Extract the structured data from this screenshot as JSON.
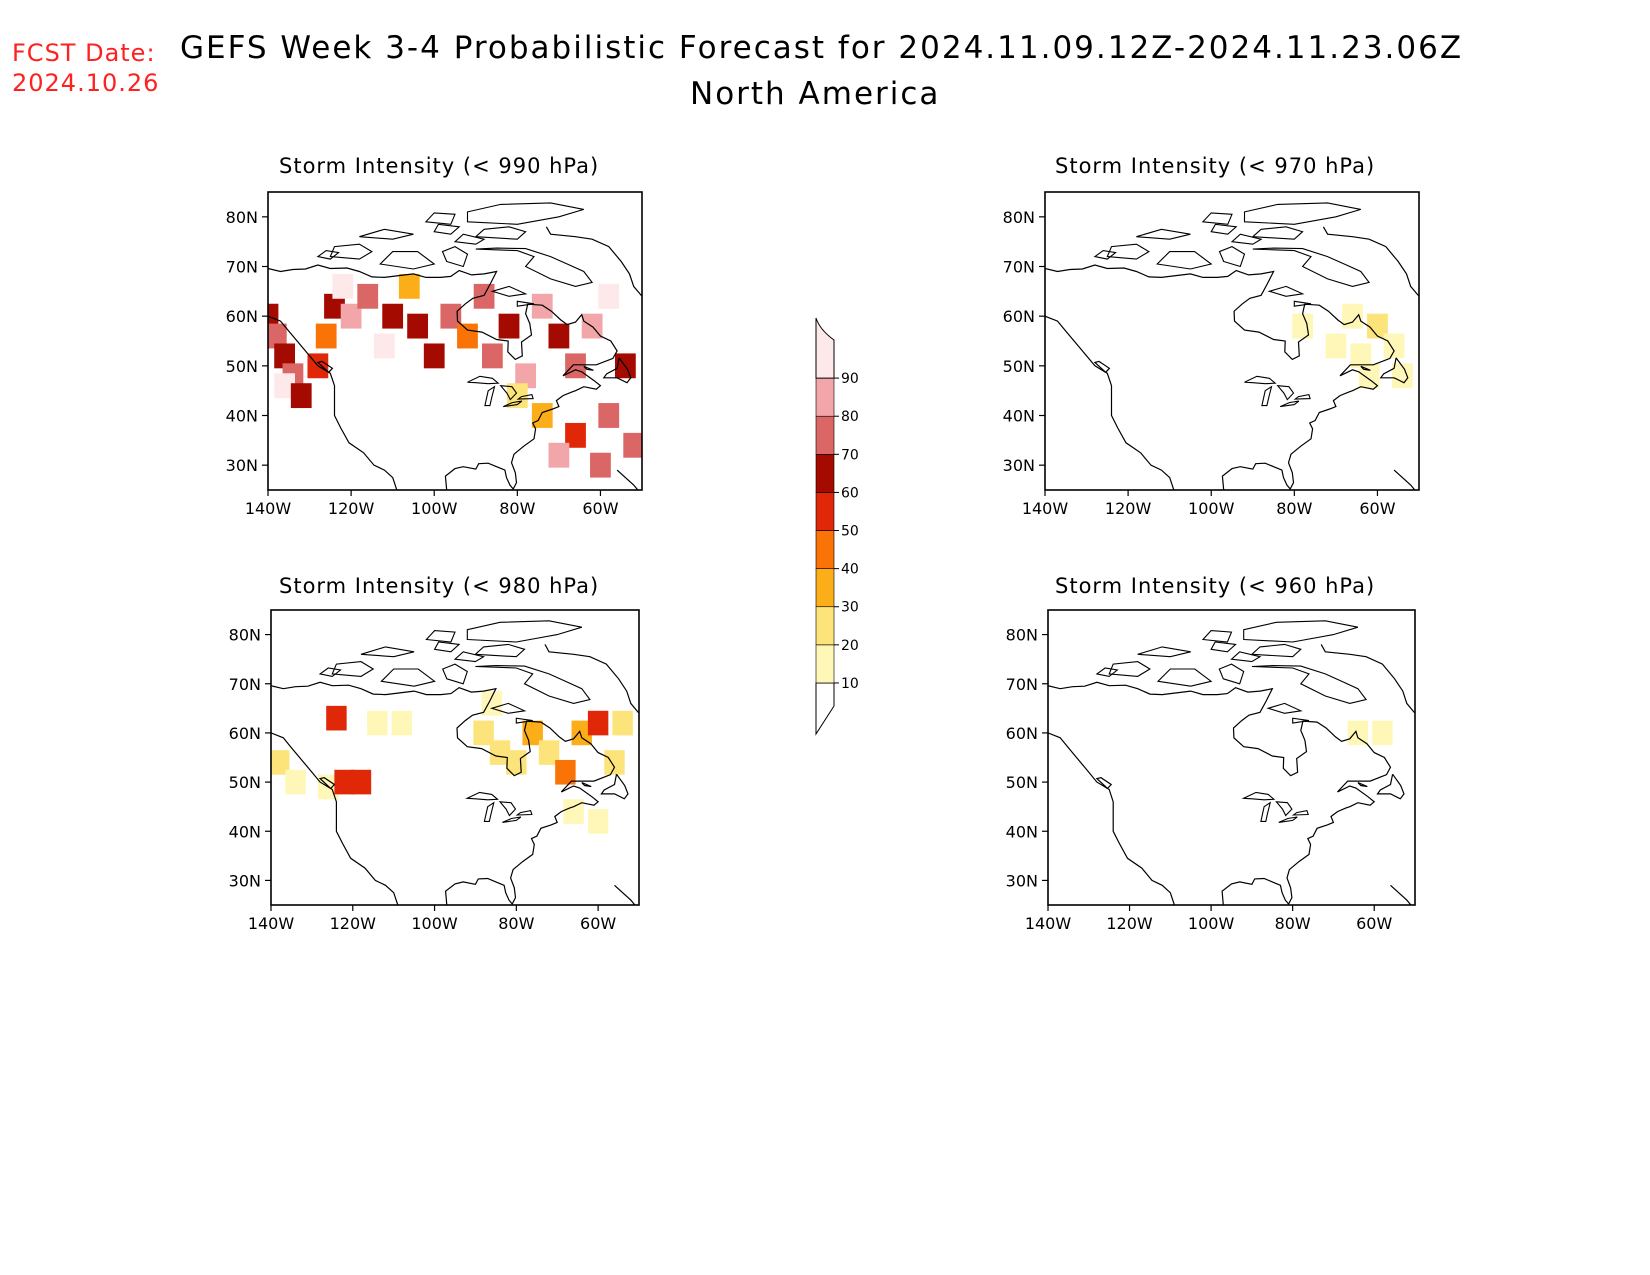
{
  "header": {
    "fcst_label": "FCST Date:",
    "fcst_date": "2024.10.26",
    "title": "GEFS Week 3-4 Probabilistic Forecast for 2024.11.09.12Z-2024.11.23.06Z",
    "region": "North America"
  },
  "colors": {
    "ramp": [
      "#fff7b8",
      "#fde47a",
      "#fcae18",
      "#f97306",
      "#e02808",
      "#a40a00",
      "#db6666",
      "#f2a6aa",
      "#fde8ea"
    ],
    "coast": "#000000",
    "fcst_text": "#ff2020"
  },
  "colorbar": {
    "levels": [
      10,
      20,
      30,
      40,
      50,
      60,
      70,
      80,
      90
    ]
  },
  "panels": [
    {
      "id": "p990",
      "title": "Storm Intensity (< 990 hPa)",
      "lat_ticks": [
        "80N",
        "70N",
        "60N",
        "50N",
        "40N",
        "30N"
      ],
      "lon_ticks": [
        "140W",
        "120W",
        "100W",
        "80W",
        "60W"
      ],
      "cells": [
        {
          "lon": -140,
          "lat": 60,
          "v": 60
        },
        {
          "lon": -138,
          "lat": 56,
          "v": 70
        },
        {
          "lon": -136,
          "lat": 52,
          "v": 60
        },
        {
          "lon": -134,
          "lat": 48,
          "v": 70
        },
        {
          "lon": -136,
          "lat": 46,
          "v": 90
        },
        {
          "lon": -132,
          "lat": 44,
          "v": 60
        },
        {
          "lon": -128,
          "lat": 50,
          "v": 50
        },
        {
          "lon": -126,
          "lat": 56,
          "v": 40
        },
        {
          "lon": -124,
          "lat": 62,
          "v": 60
        },
        {
          "lon": -122,
          "lat": 66,
          "v": 90
        },
        {
          "lon": -120,
          "lat": 60,
          "v": 80
        },
        {
          "lon": -116,
          "lat": 64,
          "v": 70
        },
        {
          "lon": -112,
          "lat": 54,
          "v": 90
        },
        {
          "lon": -110,
          "lat": 60,
          "v": 60
        },
        {
          "lon": -106,
          "lat": 66,
          "v": 30
        },
        {
          "lon": -104,
          "lat": 58,
          "v": 60
        },
        {
          "lon": -100,
          "lat": 52,
          "v": 60
        },
        {
          "lon": -96,
          "lat": 60,
          "v": 70
        },
        {
          "lon": -92,
          "lat": 56,
          "v": 40
        },
        {
          "lon": -88,
          "lat": 64,
          "v": 70
        },
        {
          "lon": -86,
          "lat": 52,
          "v": 70
        },
        {
          "lon": -82,
          "lat": 58,
          "v": 60
        },
        {
          "lon": -78,
          "lat": 48,
          "v": 80
        },
        {
          "lon": -74,
          "lat": 62,
          "v": 80
        },
        {
          "lon": -70,
          "lat": 56,
          "v": 60
        },
        {
          "lon": -66,
          "lat": 50,
          "v": 70
        },
        {
          "lon": -62,
          "lat": 58,
          "v": 80
        },
        {
          "lon": -58,
          "lat": 64,
          "v": 90
        },
        {
          "lon": -54,
          "lat": 50,
          "v": 60
        },
        {
          "lon": -58,
          "lat": 40,
          "v": 70
        },
        {
          "lon": -66,
          "lat": 36,
          "v": 50
        },
        {
          "lon": -70,
          "lat": 32,
          "v": 80
        },
        {
          "lon": -60,
          "lat": 30,
          "v": 70
        },
        {
          "lon": -80,
          "lat": 44,
          "v": 20
        },
        {
          "lon": -74,
          "lat": 40,
          "v": 30
        },
        {
          "lon": -52,
          "lat": 34,
          "v": 70
        }
      ]
    },
    {
      "id": "p970",
      "title": "Storm Intensity (< 970 hPa)",
      "lat_ticks": [
        "80N",
        "70N",
        "60N",
        "50N",
        "40N",
        "30N"
      ],
      "lon_ticks": [
        "140W",
        "120W",
        "100W",
        "80W",
        "60W"
      ],
      "cells": [
        {
          "lon": -66,
          "lat": 60,
          "v": 10
        },
        {
          "lon": -60,
          "lat": 58,
          "v": 20
        },
        {
          "lon": -70,
          "lat": 54,
          "v": 10
        },
        {
          "lon": -64,
          "lat": 52,
          "v": 10
        },
        {
          "lon": -56,
          "lat": 54,
          "v": 10
        },
        {
          "lon": -62,
          "lat": 48,
          "v": 10
        },
        {
          "lon": -54,
          "lat": 48,
          "v": 10
        },
        {
          "lon": -78,
          "lat": 58,
          "v": 10
        }
      ]
    },
    {
      "id": "p980",
      "title": "Storm Intensity (< 980 hPa)",
      "lat_ticks": [
        "80N",
        "70N",
        "60N",
        "50N",
        "40N",
        "30N"
      ],
      "lon_ticks": [
        "140W",
        "120W",
        "100W",
        "80W",
        "60W"
      ],
      "cells": [
        {
          "lon": -138,
          "lat": 54,
          "v": 20
        },
        {
          "lon": -134,
          "lat": 50,
          "v": 10
        },
        {
          "lon": -126,
          "lat": 49,
          "v": 10
        },
        {
          "lon": -122,
          "lat": 50,
          "v": 50
        },
        {
          "lon": -118,
          "lat": 50,
          "v": 50
        },
        {
          "lon": -124,
          "lat": 63,
          "v": 50
        },
        {
          "lon": -114,
          "lat": 62,
          "v": 10
        },
        {
          "lon": -108,
          "lat": 62,
          "v": 10
        },
        {
          "lon": -88,
          "lat": 60,
          "v": 20
        },
        {
          "lon": -84,
          "lat": 56,
          "v": 20
        },
        {
          "lon": -80,
          "lat": 54,
          "v": 20
        },
        {
          "lon": -76,
          "lat": 60,
          "v": 30
        },
        {
          "lon": -72,
          "lat": 56,
          "v": 20
        },
        {
          "lon": -68,
          "lat": 52,
          "v": 40
        },
        {
          "lon": -64,
          "lat": 60,
          "v": 30
        },
        {
          "lon": -60,
          "lat": 62,
          "v": 50
        },
        {
          "lon": -56,
          "lat": 54,
          "v": 20
        },
        {
          "lon": -54,
          "lat": 62,
          "v": 20
        },
        {
          "lon": -66,
          "lat": 44,
          "v": 10
        },
        {
          "lon": -60,
          "lat": 42,
          "v": 10
        },
        {
          "lon": -86,
          "lat": 66,
          "v": 10
        }
      ]
    },
    {
      "id": "p960",
      "title": "Storm Intensity (< 960 hPa)",
      "lat_ticks": [
        "80N",
        "70N",
        "60N",
        "50N",
        "40N",
        "30N"
      ],
      "lon_ticks": [
        "140W",
        "120W",
        "100W",
        "80W",
        "60W"
      ],
      "cells": [
        {
          "lon": -64,
          "lat": 60,
          "v": 10
        },
        {
          "lon": -58,
          "lat": 60,
          "v": 10
        }
      ]
    }
  ]
}
